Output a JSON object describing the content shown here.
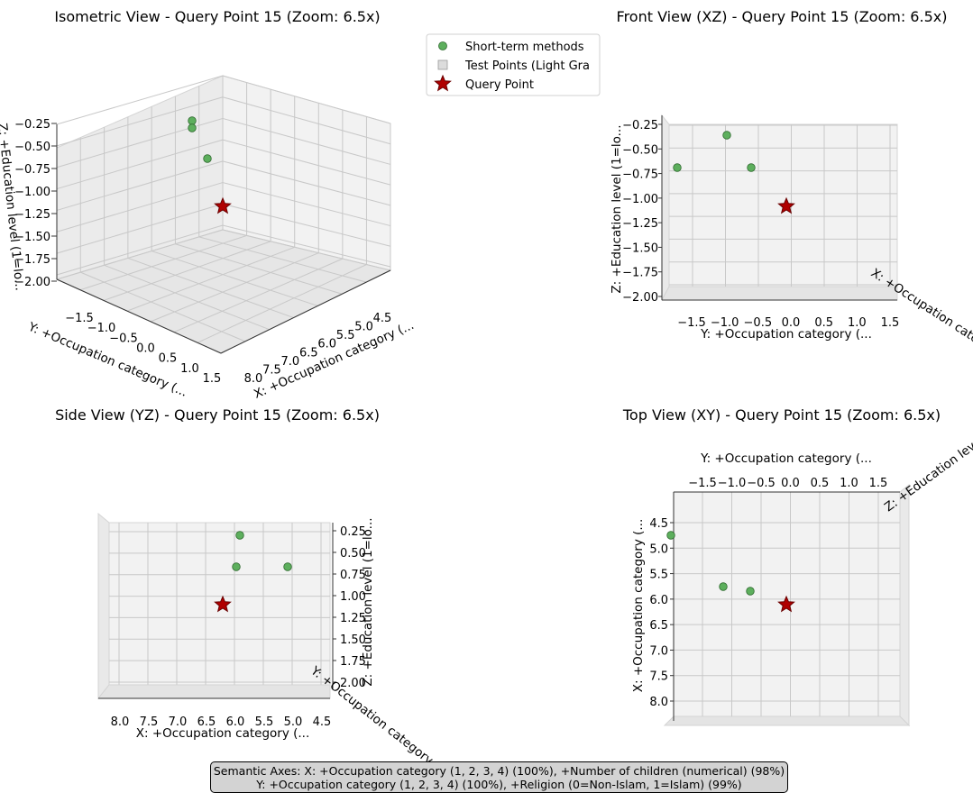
{
  "chart_data": [
    {
      "type": "scatter",
      "view": "isometric",
      "title": "Isometric View - Query Point 15 (Zoom: 6.5x)",
      "xlabel": "X: +Occupation category (...",
      "ylabel": "Y: +Occupation category (...",
      "zlabel": "Z: +Education level (1=lo...",
      "xticks": [
        "4.5",
        "5.0",
        "5.5",
        "6.0",
        "6.5",
        "7.0",
        "7.5",
        "8.0"
      ],
      "yticks": [
        "−1.5",
        "−1.0",
        "−0.5",
        "0.0",
        "0.5",
        "1.0",
        "1.5"
      ],
      "zticks": [
        "−0.25",
        "−0.50",
        "−0.75",
        "−1.00",
        "−1.25",
        "−1.50",
        "−1.75",
        "−2.00"
      ]
    },
    {
      "type": "scatter",
      "view": "front",
      "title": "Front View (XZ) - Query Point 15 (Zoom: 6.5x)",
      "xlabel": "Y: +Occupation category (...",
      "ylabel": "Z: +Education level (1=lo...",
      "xticks": [
        "−1.5",
        "−1.0",
        "−0.5",
        "0.0",
        "0.5",
        "1.0",
        "1.5"
      ],
      "yticks": [
        "−0.25",
        "−0.50",
        "−0.75",
        "−1.00",
        "−1.25",
        "−1.50",
        "−1.75",
        "−2.00"
      ],
      "edge_label": "X: +Occupation category"
    },
    {
      "type": "scatter",
      "view": "side",
      "title": "Side View (YZ) - Query Point 15 (Zoom: 6.5x)",
      "xlabel": "X: +Occupation category (...",
      "ylabel": "Z: +Education level (1=lo...",
      "xticks": [
        "8.0",
        "7.5",
        "7.0",
        "6.5",
        "6.0",
        "5.5",
        "5.0",
        "4.5"
      ],
      "yticks": [
        "0.25",
        "0.50",
        "0.75",
        "1.00",
        "1.25",
        "1.50",
        "1.75",
        "2.00"
      ],
      "edge_label": "Y: +Occupation category"
    },
    {
      "type": "scatter",
      "view": "top",
      "title": "Top View (XY) - Query Point 15 (Zoom: 6.5x)",
      "xlabel": "Y: +Occupation category (...",
      "ylabel": "X: +Occupation category (...",
      "xticks": [
        "−1.5",
        "−1.0",
        "−0.5",
        "0.0",
        "0.5",
        "1.0",
        "1.5"
      ],
      "yticks": [
        "4.5",
        "5.0",
        "5.5",
        "6.0",
        "6.5",
        "7.0",
        "7.5",
        "8.0"
      ],
      "edge_label": "Z: +Education level ("
    }
  ],
  "points": {
    "short_term": [
      {
        "x": 4.4,
        "y": -1.8,
        "z": -0.72
      },
      {
        "x": 5.9,
        "y": -1.0,
        "z": -0.4
      },
      {
        "x": 6.0,
        "y": -0.6,
        "z": -0.72
      }
    ],
    "query": {
      "x": 6.2,
      "y": -0.05,
      "z": -1.15
    }
  },
  "legend": {
    "items": [
      "Short-term methods",
      "Test Points (Light Gra",
      "Query Point"
    ],
    "location": "upper-right of first panel"
  },
  "colors": {
    "short_term": "#5daf5d",
    "test_points": "#dcdcdc",
    "query": "#b00000",
    "pane": "#f2f2f2",
    "grid": "#c8c8c8"
  },
  "caption": {
    "line1": "Semantic Axes: X: +Occupation category (1, 2, 3, 4) (100%), +Number of children (numerical) (98%)",
    "line2": "Y: +Occupation category (1, 2, 3, 4) (100%), +Religion (0=Non-Islam, 1=Islam) (99%)"
  }
}
